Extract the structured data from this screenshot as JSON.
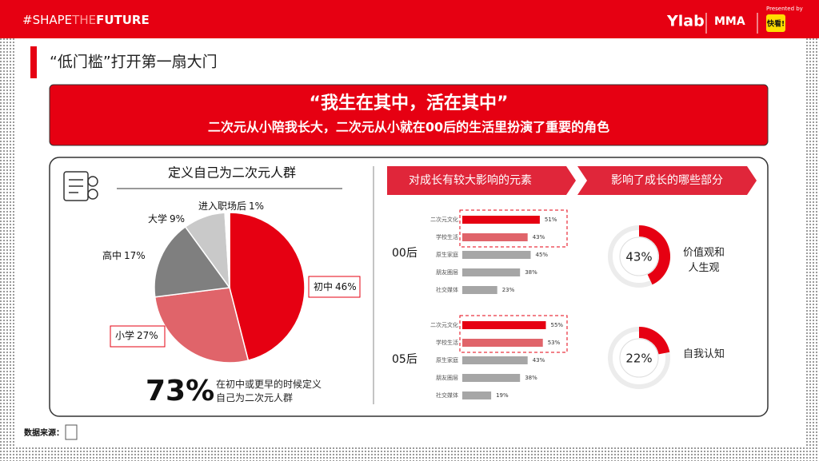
{
  "header": {
    "hashtag": [
      "#SHAPE",
      "THE",
      "FUTURE"
    ],
    "brand": "Ylab",
    "partner": "MMA",
    "presented_by": "Presented by",
    "sponsor": "快看!"
  },
  "section_title": "“低门槛”打开第一扇大门",
  "banner": {
    "quote": "“我生在其中，活在其中”",
    "subtitle": "二次元从小陪我长大，二次元从小就在00后的生活里扮演了重要的角色"
  },
  "panel_headings": [
    "对成长有较大影响的元素",
    "影响了成长的哪些部分"
  ],
  "pie_summary": {
    "figure": "73%",
    "text": "在初中或更早的时候定义自己为二次元人群"
  },
  "footer": {
    "source": "数据来源："
  },
  "chart_data": [
    {
      "type": "pie",
      "title": "定义自己为二次元人群",
      "categories": [
        "初中",
        "小学",
        "高中",
        "大学",
        "进入职场后"
      ],
      "values": [
        46,
        27,
        17,
        9,
        1
      ],
      "value_labels": [
        "46%",
        "27%",
        "17%",
        "9%",
        "1%"
      ],
      "colors": [
        "#e60012",
        "#e0646a",
        "#7f7f7f",
        "#c9c9c9",
        "#ffffff"
      ]
    },
    {
      "type": "hbar",
      "title": "00后",
      "categories": [
        "二次元文化",
        "学校生活",
        "原生家庭",
        "朋友圈层",
        "社交媒体"
      ],
      "values": [
        51,
        43,
        45,
        38,
        23
      ],
      "value_labels": [
        "51%",
        "43%",
        "45%",
        "38%",
        "23%"
      ],
      "colors": [
        "#e60012",
        "#e0646a",
        "#a6a6a6",
        "#a6a6a6",
        "#a6a6a6"
      ]
    },
    {
      "type": "hbar",
      "title": "05后",
      "categories": [
        "二次元文化",
        "学校生活",
        "原生家庭",
        "朋友圈层",
        "社交媒体"
      ],
      "values": [
        55,
        53,
        43,
        38,
        19
      ],
      "value_labels": [
        "55%",
        "53%",
        "43%",
        "38%",
        "19%"
      ],
      "colors": [
        "#e60012",
        "#e0646a",
        "#a6a6a6",
        "#a6a6a6",
        "#a6a6a6"
      ]
    },
    {
      "type": "donut",
      "category": "价值观和人生观",
      "values": [
        43
      ],
      "value_labels": [
        "43%"
      ],
      "color": "#e60012"
    },
    {
      "type": "donut",
      "category": "自我认知",
      "values": [
        22
      ],
      "value_labels": [
        "22%"
      ],
      "color": "#e60012"
    }
  ]
}
